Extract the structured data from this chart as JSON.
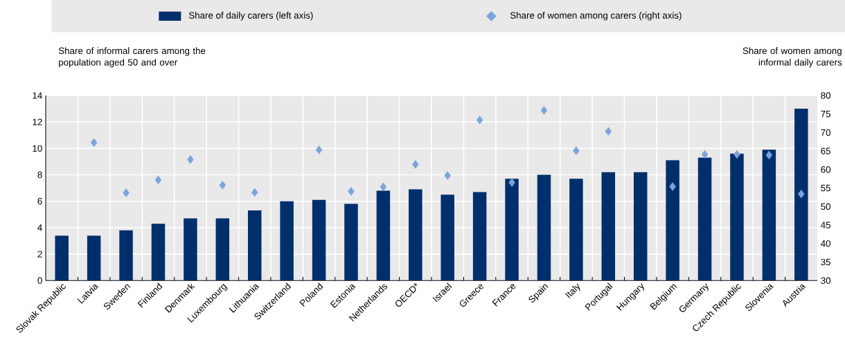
{
  "chart_data": {
    "type": "bar",
    "categories": [
      "Slovak Republic",
      "Latvia",
      "Sweden",
      "Finland",
      "Denmark",
      "Luxembourg",
      "Lithuania",
      "Switzerland",
      "Poland",
      "Estonia",
      "Netherlands",
      "OECD*",
      "Israel",
      "Greece",
      "France",
      "Spain",
      "Italy",
      "Portugal",
      "Hungary",
      "Belgium",
      "Germany",
      "Czech Republic",
      "Slovenia",
      "Austria"
    ],
    "series": [
      {
        "name": "Share of daily carers (left axis)",
        "color": "#002f6c",
        "values": [
          3.4,
          3.4,
          3.8,
          4.3,
          4.7,
          4.7,
          5.3,
          6.0,
          6.1,
          5.8,
          6.8,
          6.9,
          6.5,
          6.7,
          7.7,
          8.0,
          7.7,
          8.2,
          8.2,
          9.1,
          9.3,
          9.6,
          9.9,
          13.0
        ]
      },
      {
        "name": "Share of women among carers (right axis)",
        "type": "scatter",
        "axis": "y2",
        "marker": "diamond",
        "color": "#7ba4db",
        "values": [
          null,
          67.3,
          53.7,
          57.2,
          62.7,
          55.8,
          53.8,
          null,
          65.3,
          54.1,
          55.3,
          61.4,
          58.4,
          73.4,
          56.5,
          76.0,
          65.1,
          70.3,
          null,
          55.4,
          64.1,
          64.1,
          63.9,
          53.4
        ]
      }
    ],
    "ylabel": "Share of informal carers among the population aged 50 and over",
    "y2label": "Share of women among informal daily carers",
    "ylim": [
      0,
      14
    ],
    "yticks": [
      0,
      2,
      4,
      6,
      8,
      10,
      12,
      14
    ],
    "y2lim": [
      30,
      80
    ],
    "y2ticks": [
      30,
      35,
      40,
      45,
      50,
      55,
      60,
      65,
      70,
      75,
      80
    ],
    "grid": true,
    "legend": "top"
  }
}
